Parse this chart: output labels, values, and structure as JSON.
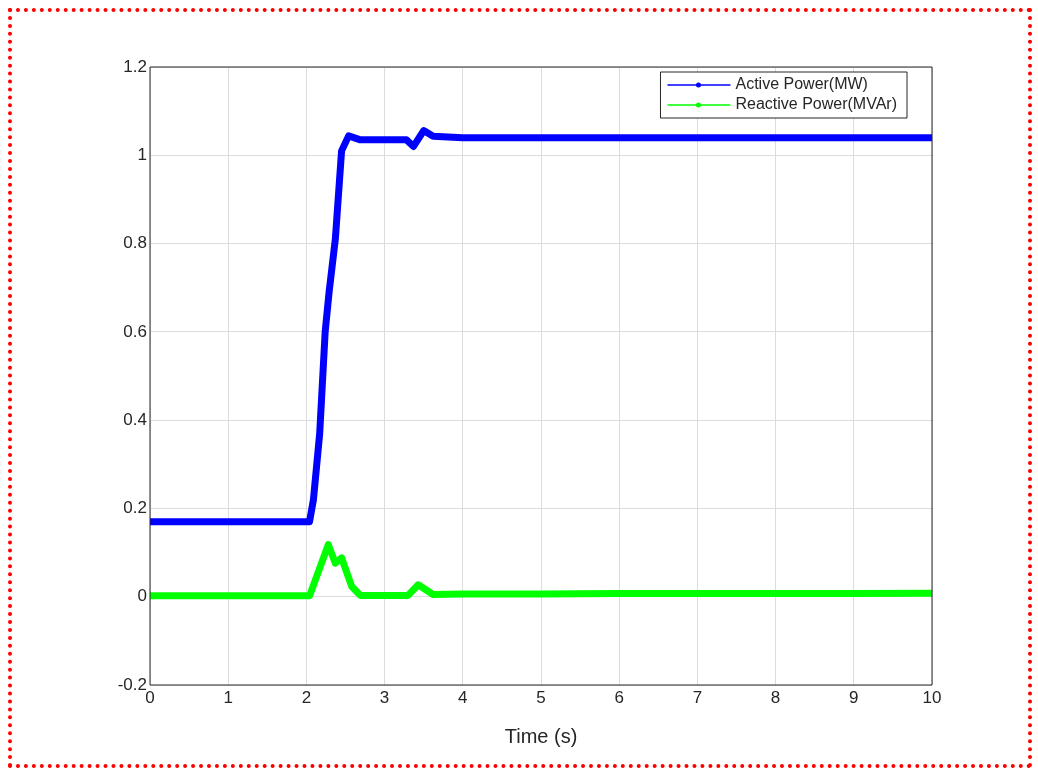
{
  "chart_data": {
    "type": "line",
    "xlabel": "Time (s)",
    "xlim": [
      0,
      10
    ],
    "xticks": [
      0,
      1,
      2,
      3,
      4,
      5,
      6,
      7,
      8,
      9,
      10
    ],
    "ylim": [
      -0.2,
      1.2
    ],
    "yticks": [
      -0.2,
      0,
      0.2,
      0.4,
      0.6,
      0.8,
      1,
      1.2
    ],
    "grid": true,
    "legend": "top right",
    "series": [
      {
        "name": "Active Power(MW)",
        "color": "#0000ff",
        "x": [
          0,
          1,
          2,
          2.04,
          2.09,
          2.17,
          2.24,
          2.29,
          2.37,
          2.45,
          2.54,
          2.69,
          3.28,
          3.37,
          3.5,
          3.62,
          4,
          5,
          6,
          7,
          8,
          9,
          10
        ],
        "values": [
          0.17,
          0.17,
          0.17,
          0.17,
          0.22,
          0.37,
          0.6,
          0.69,
          0.81,
          1.01,
          1.044,
          1.035,
          1.035,
          1.02,
          1.056,
          1.043,
          1.04,
          1.04,
          1.04,
          1.04,
          1.04,
          1.04,
          1.04
        ]
      },
      {
        "name": "Reactive Power(MVAr)",
        "color": "#00ff00",
        "x": [
          0,
          1,
          2,
          2.04,
          2.28,
          2.37,
          2.45,
          2.58,
          2.69,
          3.3,
          3.43,
          3.62,
          4,
          5,
          6,
          7,
          8,
          9,
          10
        ],
        "values": [
          0.002,
          0.002,
          0.002,
          0.002,
          0.118,
          0.076,
          0.088,
          0.023,
          0.003,
          0.003,
          0.027,
          0.005,
          0.006,
          0.006,
          0.007,
          0.007,
          0.007,
          0.007,
          0.008
        ]
      }
    ]
  }
}
